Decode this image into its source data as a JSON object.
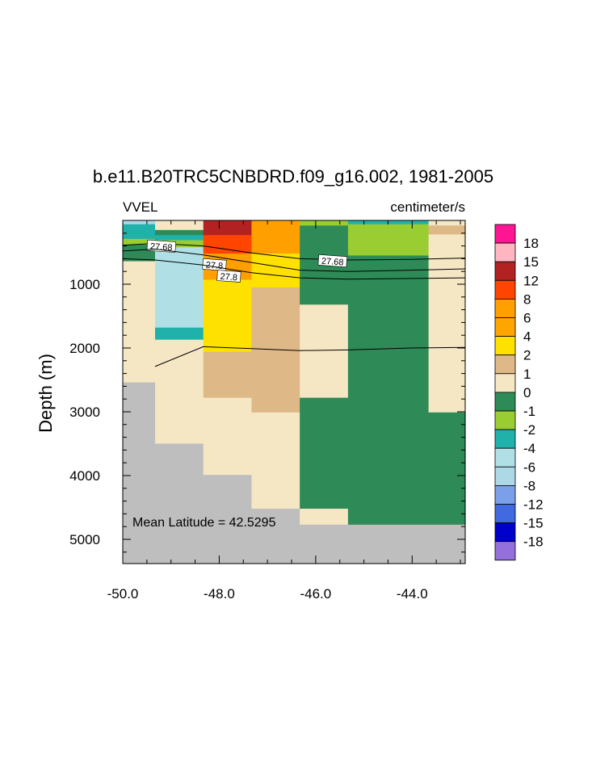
{
  "chart_data": {
    "type": "heatmap",
    "title": "b.e11.B20TRC5CNBDRD.f09_g16.002, 1981-2005",
    "left_label": "VVEL",
    "right_label": "centimeter/s",
    "ylabel": "Depth (m)",
    "xlabel": "",
    "xlim": [
      -50.0,
      -42.9
    ],
    "ylim": [
      5380,
      0
    ],
    "x_ticks": [
      -50.0,
      -48.0,
      -46.0,
      -44.0
    ],
    "x_tick_labels": [
      "-50.0",
      "-48.0",
      "-46.0",
      "-44.0"
    ],
    "y_ticks": [
      1000,
      2000,
      3000,
      4000,
      5000
    ],
    "y_tick_labels": [
      "1000",
      "2000",
      "3000",
      "4000",
      "5000"
    ],
    "annotation": "Mean Latitude = 42.5295",
    "land_color": "#bebebe",
    "palette": {
      "lt_-18": "#9370db",
      "-18_-15": "#0000cd",
      "-15_-12": "#4169e1",
      "-12_-8": "#7b9fe8",
      "-8_-6": "#add8e6",
      "-6_-4": "#b0e0e6",
      "-4_-2": "#20b2aa",
      "-2_-1": "#9acd32",
      "-1_0": "#2e8b57",
      "0_1": "#f5e6c4",
      "1_2": "#deb887",
      "2_4": "#ffe100",
      "4_6": "#ffa500",
      "6_8": "#ffa000",
      "8_12": "#ff4500",
      "12_15": "#b22222",
      "15_18": "#ffb6c1",
      "gt_18": "#ff1493"
    },
    "legend_levels": [
      "18",
      "15",
      "12",
      "8",
      "6",
      "4",
      "2",
      "1",
      "0",
      "-1",
      "-2",
      "-4",
      "-6",
      "-8",
      "-12",
      "-15",
      "-18"
    ],
    "legend_order_top_to_bottom": [
      "gt_18",
      "15_18",
      "12_15",
      "8_12",
      "6_8",
      "4_6",
      "2_4",
      "1_2",
      "0_1",
      "-1_0",
      "-2_-1",
      "-4_-2",
      "-6_-4",
      "-8_-6",
      "-12_-8",
      "-15_-12",
      "-18_-15",
      "lt_-18"
    ],
    "columns": [
      {
        "x0": -50.0,
        "x1": -49.33,
        "cells": [
          {
            "d0": 0,
            "d1": 60,
            "c": "-8_-6"
          },
          {
            "d0": 60,
            "d1": 290,
            "c": "-4_-2"
          },
          {
            "d0": 290,
            "d1": 380,
            "c": "-2_-1"
          },
          {
            "d0": 380,
            "d1": 490,
            "c": "-1_0"
          },
          {
            "d0": 490,
            "d1": 640,
            "c": "-1_0"
          },
          {
            "d0": 640,
            "d1": 2540,
            "c": "0_1"
          },
          {
            "d0": 2540,
            "d1": 5380,
            "c": "land"
          }
        ]
      },
      {
        "x0": -49.33,
        "x1": -48.33,
        "cells": [
          {
            "d0": 0,
            "d1": 150,
            "c": "0_1"
          },
          {
            "d0": 150,
            "d1": 230,
            "c": "-1_0"
          },
          {
            "d0": 230,
            "d1": 310,
            "c": "-4_-2"
          },
          {
            "d0": 310,
            "d1": 420,
            "c": "-2_-1"
          },
          {
            "d0": 420,
            "d1": 1680,
            "c": "-6_-4"
          },
          {
            "d0": 1680,
            "d1": 1870,
            "c": "-4_-2"
          },
          {
            "d0": 1870,
            "d1": 3500,
            "c": "0_1"
          },
          {
            "d0": 3500,
            "d1": 5380,
            "c": "land"
          }
        ]
      },
      {
        "x0": -48.33,
        "x1": -47.33,
        "cells": [
          {
            "d0": 0,
            "d1": 230,
            "c": "12_15"
          },
          {
            "d0": 230,
            "d1": 520,
            "c": "8_12"
          },
          {
            "d0": 520,
            "d1": 930,
            "c": "6_8"
          },
          {
            "d0": 930,
            "d1": 2060,
            "c": "2_4"
          },
          {
            "d0": 2060,
            "d1": 2780,
            "c": "1_2"
          },
          {
            "d0": 2780,
            "d1": 3990,
            "c": "0_1"
          },
          {
            "d0": 3990,
            "d1": 5380,
            "c": "land"
          }
        ]
      },
      {
        "x0": -47.33,
        "x1": -46.33,
        "cells": [
          {
            "d0": 0,
            "d1": 520,
            "c": "6_8"
          },
          {
            "d0": 520,
            "d1": 1050,
            "c": "2_4"
          },
          {
            "d0": 1050,
            "d1": 3010,
            "c": "1_2"
          },
          {
            "d0": 3010,
            "d1": 4520,
            "c": "0_1"
          },
          {
            "d0": 4520,
            "d1": 5380,
            "c": "land"
          }
        ]
      },
      {
        "x0": -46.33,
        "x1": -45.33,
        "cells": [
          {
            "d0": 0,
            "d1": 80,
            "c": "-2_-1"
          },
          {
            "d0": 80,
            "d1": 1320,
            "c": "-1_0"
          },
          {
            "d0": 1320,
            "d1": 2780,
            "c": "0_1"
          },
          {
            "d0": 2780,
            "d1": 4520,
            "c": "-1_0"
          },
          {
            "d0": 4520,
            "d1": 4770,
            "c": "0_1"
          },
          {
            "d0": 4770,
            "d1": 5380,
            "c": "land"
          }
        ]
      },
      {
        "x0": -45.33,
        "x1": -43.66,
        "cells": [
          {
            "d0": 0,
            "d1": 60,
            "c": "-4_-2"
          },
          {
            "d0": 60,
            "d1": 550,
            "c": "-2_-1"
          },
          {
            "d0": 550,
            "d1": 4770,
            "c": "-1_0"
          },
          {
            "d0": 4770,
            "d1": 5380,
            "c": "land"
          }
        ]
      },
      {
        "x0": -43.66,
        "x1": -42.9,
        "cells": [
          {
            "d0": 0,
            "d1": 80,
            "c": "0_1"
          },
          {
            "d0": 80,
            "d1": 220,
            "c": "1_2"
          },
          {
            "d0": 220,
            "d1": 3010,
            "c": "0_1"
          },
          {
            "d0": 3010,
            "d1": 4770,
            "c": "-1_0"
          },
          {
            "d0": 4770,
            "d1": 5380,
            "c": "land"
          }
        ]
      }
    ],
    "contours": [
      {
        "label": "27.68",
        "points": [
          [
            -50.0,
            390
          ],
          [
            -49.33,
            360
          ],
          [
            -48.33,
            400
          ],
          [
            -47.33,
            510
          ],
          [
            -46.33,
            600
          ],
          [
            -45.33,
            620
          ],
          [
            -44.0,
            610
          ],
          [
            -42.9,
            590
          ]
        ],
        "label_at": [
          -49.2,
          410
        ],
        "label_at_2": [
          -45.65,
          640
        ]
      },
      {
        "label": "27.8",
        "points": [
          [
            -50.0,
            480
          ],
          [
            -49.33,
            450
          ],
          [
            -48.33,
            540
          ],
          [
            -47.33,
            660
          ],
          [
            -46.33,
            780
          ],
          [
            -45.33,
            800
          ],
          [
            -44.0,
            780
          ],
          [
            -42.9,
            760
          ]
        ],
        "label_at": [
          -48.1,
          700
        ],
        "label_at_2": [
          -47.8,
          880
        ]
      },
      {
        "label": "",
        "points": [
          [
            -50.0,
            600
          ],
          [
            -49.33,
            620
          ],
          [
            -48.33,
            700
          ],
          [
            -47.33,
            820
          ],
          [
            -46.33,
            900
          ],
          [
            -45.33,
            920
          ],
          [
            -44.0,
            910
          ],
          [
            -42.9,
            900
          ]
        ]
      },
      {
        "label": "",
        "points": [
          [
            -49.33,
            2290
          ],
          [
            -48.33,
            1980
          ],
          [
            -47.33,
            2010
          ],
          [
            -46.33,
            2040
          ],
          [
            -45.33,
            2030
          ],
          [
            -44.0,
            2000
          ],
          [
            -42.9,
            1990
          ]
        ]
      }
    ]
  }
}
